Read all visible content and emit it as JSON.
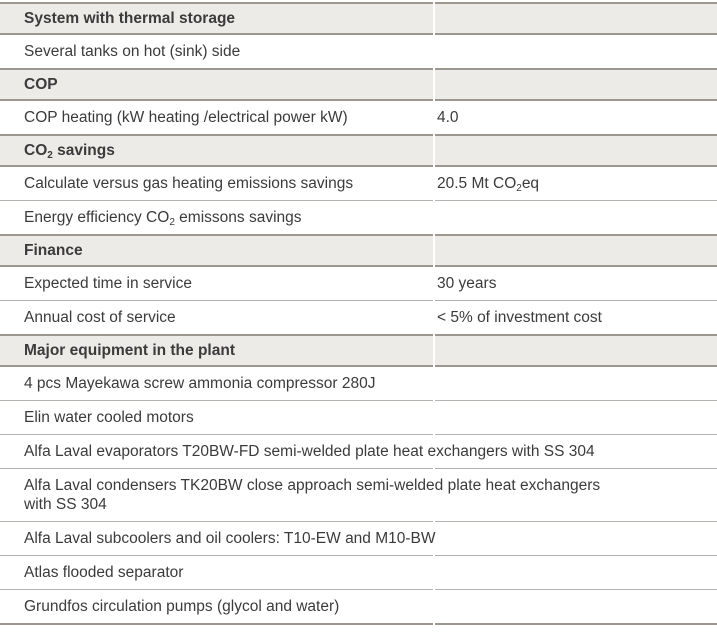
{
  "colors": {
    "header_bg": "#ecebe8",
    "border_dark": "#9d978f",
    "border_light": "#b6b2ad",
    "text": "#3b3b3b",
    "page_bg": "#ffffff"
  },
  "table": {
    "rows": [
      {
        "type": "header",
        "label": [
          {
            "t": "System with thermal storage"
          }
        ]
      },
      {
        "type": "item",
        "label": [
          {
            "t": "Several tanks on hot (sink) side"
          }
        ],
        "value": []
      },
      {
        "type": "header",
        "label": [
          {
            "t": "COP"
          }
        ]
      },
      {
        "type": "item",
        "label": [
          {
            "t": "COP heating (kW heating /electrical power kW)"
          }
        ],
        "value": [
          {
            "t": "4.0"
          }
        ]
      },
      {
        "type": "header",
        "label": [
          {
            "t": "CO"
          },
          {
            "t": "2",
            "sub": true
          },
          {
            "t": " savings"
          }
        ]
      },
      {
        "type": "item",
        "label": [
          {
            "t": "Calculate versus gas heating emissions savings"
          }
        ],
        "value": [
          {
            "t": "20.5 Mt CO"
          },
          {
            "t": "2",
            "sub": true
          },
          {
            "t": "eq"
          }
        ]
      },
      {
        "type": "item",
        "label": [
          {
            "t": "Energy efficiency CO"
          },
          {
            "t": "2",
            "sub": true
          },
          {
            "t": " emissons savings"
          }
        ],
        "value": []
      },
      {
        "type": "header",
        "label": [
          {
            "t": "Finance"
          }
        ]
      },
      {
        "type": "item",
        "label": [
          {
            "t": "Expected time in service"
          }
        ],
        "value": [
          {
            "t": "30 years"
          }
        ]
      },
      {
        "type": "item",
        "label": [
          {
            "t": "Annual cost of service"
          }
        ],
        "value": [
          {
            "t": "< 5% of investment cost"
          }
        ]
      },
      {
        "type": "header",
        "label": [
          {
            "t": "Major equipment in the plant"
          }
        ]
      },
      {
        "type": "item",
        "full": true,
        "label": [
          {
            "t": "4 pcs Mayekawa screw ammonia compressor 280J"
          }
        ],
        "value": []
      },
      {
        "type": "item",
        "full": true,
        "label": [
          {
            "t": "Elin water cooled motors"
          }
        ],
        "value": []
      },
      {
        "type": "item",
        "full": true,
        "label": [
          {
            "t": "Alfa Laval evaporators T20BW-FD semi-welded plate heat exchangers with SS 304"
          }
        ],
        "value": []
      },
      {
        "type": "item",
        "full": true,
        "label": [
          {
            "t": "Alfa Laval condensers TK20BW close approach semi-welded plate heat exchangers"
          },
          {
            "br": true
          },
          {
            "t": "with SS 304"
          }
        ],
        "value": []
      },
      {
        "type": "item",
        "full": true,
        "label": [
          {
            "t": "Alfa Laval subcoolers and oil coolers: T10-EW and M10-BW"
          }
        ],
        "value": []
      },
      {
        "type": "item",
        "full": true,
        "label": [
          {
            "t": "Atlas flooded separator"
          }
        ],
        "value": []
      },
      {
        "type": "item",
        "full": true,
        "label": [
          {
            "t": "Grundfos circulation pumps (glycol and water)"
          }
        ],
        "value": []
      }
    ]
  }
}
